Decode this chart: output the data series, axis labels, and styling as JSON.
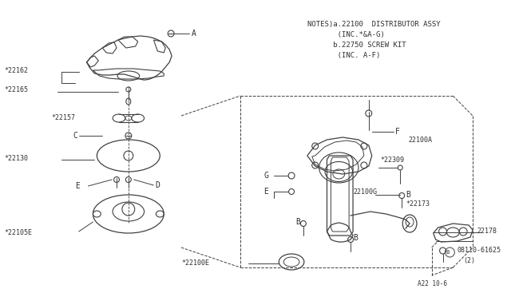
{
  "bg_color": "#ffffff",
  "line_color": "#404040",
  "text_color": "#303030",
  "notes_lines": [
    "NOTES)a.22100  DISTRIBUTOR ASSY",
    "       (INC.*&A-G)",
    "      b.22750 SCREW KIT",
    "       (INC. A-F)"
  ],
  "footer": "A22 10-6",
  "fig_w": 6.4,
  "fig_h": 3.72,
  "dpi": 100
}
